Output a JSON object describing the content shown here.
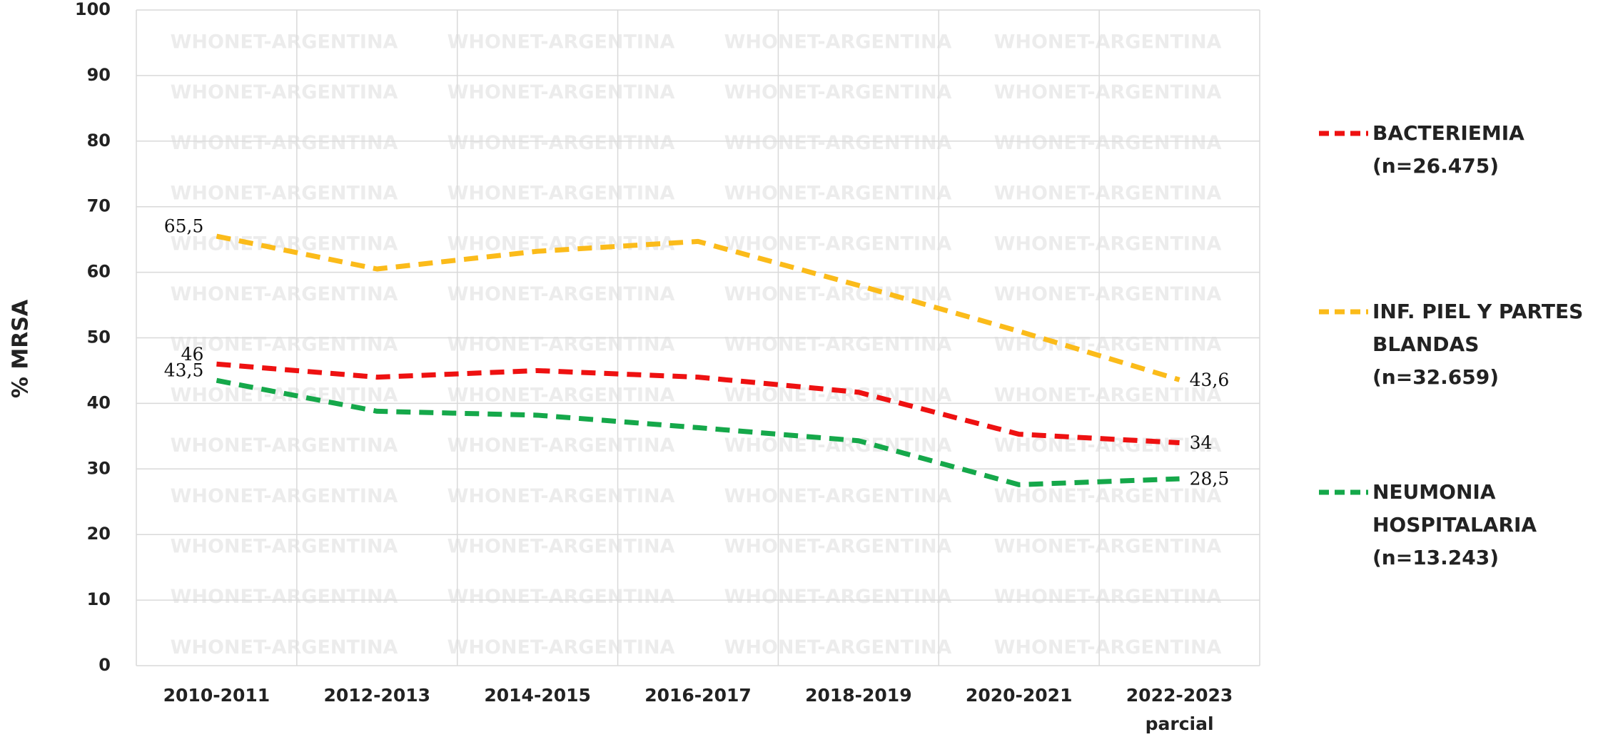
{
  "chart_data": {
    "type": "line",
    "ylabel": "% MRSA",
    "watermark": "WHONET-ARGENTINA",
    "categories": [
      "2010-2011",
      "2012-2013",
      "2014-2015",
      "2016-2017",
      "2018-2019",
      "2020-2021",
      "2022-2023\nparcial"
    ],
    "ylim": [
      0,
      100
    ],
    "yticks": [
      0,
      10,
      20,
      30,
      40,
      50,
      60,
      70,
      80,
      90,
      100
    ],
    "grid": true,
    "legend": "right",
    "series": [
      {
        "name": "BACTERIEMIA\n(n=26.475)",
        "color": "#ee1111",
        "values": [
          46,
          44,
          45,
          44,
          41.7,
          35.3,
          34
        ],
        "value_labels": [
          "46",
          null,
          null,
          null,
          null,
          null,
          "34"
        ]
      },
      {
        "name": "INF. PIEL Y PARTES\nBLANDAS\n(n=32.659)",
        "color": "#fbbb1a",
        "values": [
          65.5,
          60.5,
          63.2,
          64.7,
          58,
          51,
          43.6
        ],
        "value_labels": [
          "65,5",
          null,
          null,
          null,
          null,
          null,
          "43,6"
        ]
      },
      {
        "name": "NEUMONIA\nHOSPITALARIA\n(n=13.243)",
        "color": "#15a84a",
        "values": [
          43.5,
          38.8,
          38.2,
          36.3,
          34.3,
          27.6,
          28.5
        ],
        "value_labels": [
          "43,5",
          null,
          null,
          null,
          null,
          null,
          "28,5"
        ]
      }
    ]
  }
}
